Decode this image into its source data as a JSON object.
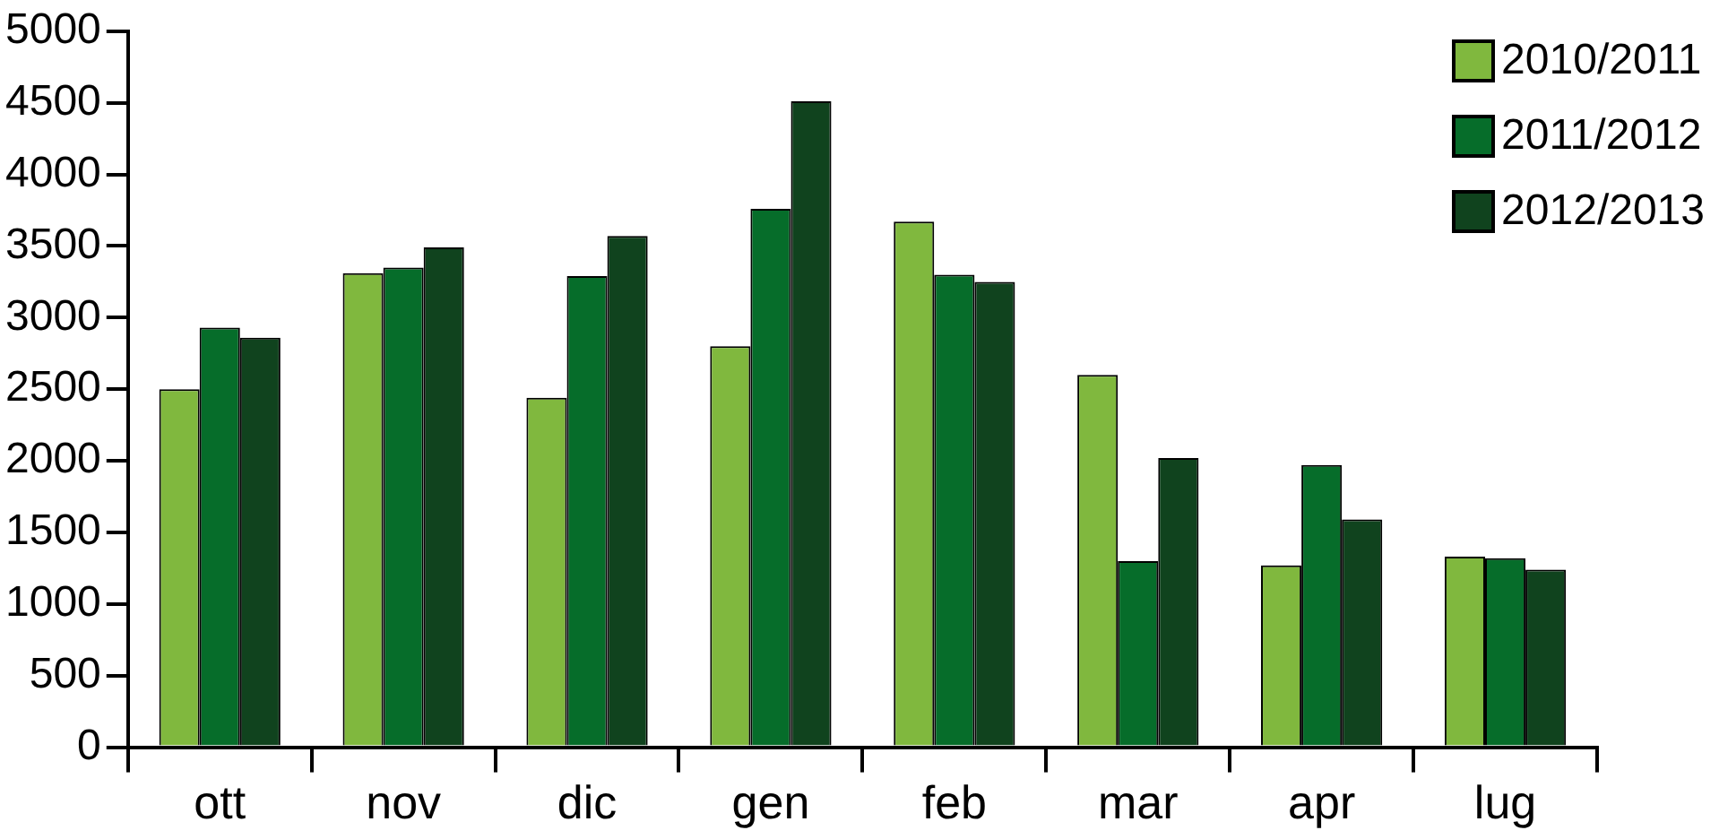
{
  "chart_data": {
    "type": "bar",
    "categories": [
      "ott",
      "nov",
      "dic",
      "gen",
      "feb",
      "mar",
      "apr",
      "lug"
    ],
    "series": [
      {
        "name": "2010/2011",
        "color": "#80b83e",
        "values": [
          2500,
          3310,
          2440,
          2800,
          3670,
          2600,
          1270,
          1330
        ]
      },
      {
        "name": "2011/2012",
        "color": "#066d2a",
        "values": [
          2930,
          3350,
          3290,
          3760,
          3300,
          1300,
          1970,
          1320
        ]
      },
      {
        "name": "2012/2013",
        "color": "#10431e",
        "values": [
          2860,
          3490,
          3570,
          4510,
          3250,
          2020,
          1590,
          1240
        ]
      }
    ],
    "ylim": [
      0,
      5000
    ],
    "yticks": [
      0,
      500,
      1000,
      1500,
      2000,
      2500,
      3000,
      3500,
      4000,
      4500,
      5000
    ],
    "grid": false,
    "legend": "top right"
  }
}
